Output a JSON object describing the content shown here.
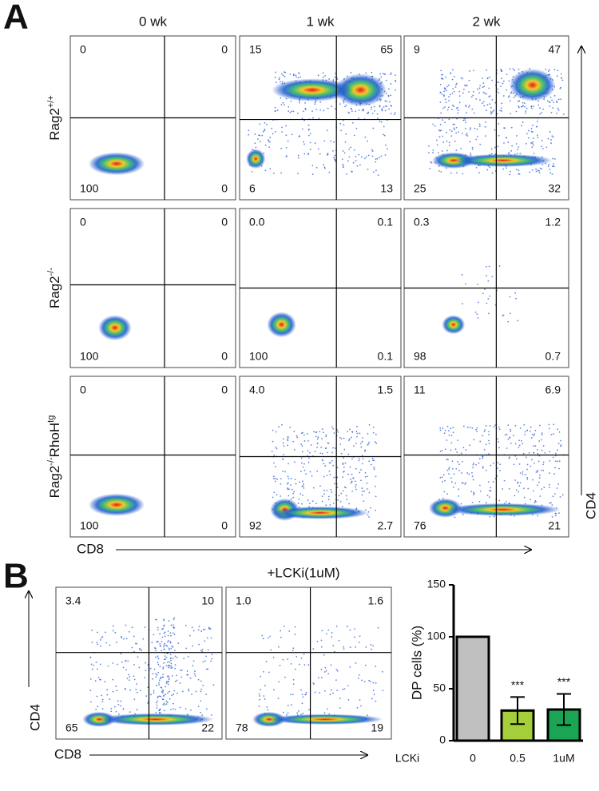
{
  "panel_a": {
    "label": "A",
    "columns": [
      "0 wk",
      "1 wk",
      "2 wk"
    ],
    "rows": [
      {
        "label_parts": [
          "Rag2",
          "+/+"
        ],
        "plots": [
          [
            "0",
            "0",
            "100",
            "0"
          ],
          [
            "15",
            "65",
            "6",
            "13"
          ],
          [
            "9",
            "47",
            "25",
            "32"
          ]
        ]
      },
      {
        "label_parts": [
          "Rag2",
          "-/-"
        ],
        "plots": [
          [
            "0",
            "0",
            "100",
            "0"
          ],
          [
            "0.0",
            "0.1",
            "100",
            "0.1"
          ],
          [
            "0.3",
            "1.2",
            "98",
            "0.7"
          ]
        ]
      },
      {
        "label_parts": [
          "Rag2",
          "-/-",
          "RhoH",
          "tg"
        ],
        "plots": [
          [
            "0",
            "0",
            "100",
            "0"
          ],
          [
            "4.0",
            "1.5",
            "92",
            "2.7"
          ],
          [
            "11",
            "6.9",
            "76",
            "21"
          ]
        ]
      }
    ],
    "x_axis_label": "CD8",
    "y_axis_label": "CD4"
  },
  "panel_b": {
    "label": "B",
    "treatment_label": "+LCKi(1uM)",
    "plots": [
      [
        "3.4",
        "10",
        "65",
        "22"
      ],
      [
        "1.0",
        "1.6",
        "78",
        "19"
      ]
    ],
    "x_axis_label": "CD8",
    "y_axis_label": "CD4"
  },
  "chart_data": {
    "type": "bar",
    "categories": [
      "0",
      "0.5",
      "1uM"
    ],
    "category_axis_label": "LCKi",
    "y_label": "DP cells (%)",
    "values": [
      100,
      29,
      30
    ],
    "errors": [
      null,
      13,
      15
    ],
    "colors": [
      "#c0c0c0",
      "#a5cf3a",
      "#1aa555"
    ],
    "significance": [
      null,
      "***",
      "***"
    ],
    "ylim": [
      0,
      150
    ],
    "yticks": [
      0,
      50,
      100,
      150
    ]
  }
}
